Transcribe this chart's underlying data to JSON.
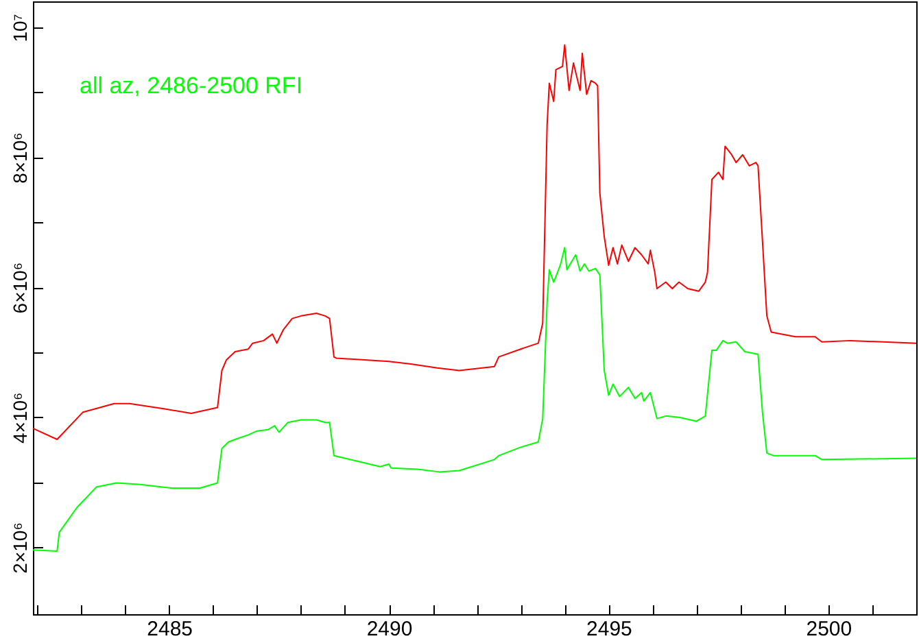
{
  "chart_data": {
    "type": "line",
    "annotations": [
      "all az, 2486-2500 RFI"
    ],
    "xlim": [
      2481.9,
      2502
    ],
    "xticks": [
      {
        "value": 2482,
        "label": null
      },
      {
        "value": 2483,
        "label": null
      },
      {
        "value": 2484,
        "label": null
      },
      2485,
      {
        "value": 2486,
        "label": null
      },
      {
        "value": 2487,
        "label": null
      },
      {
        "value": 2488,
        "label": null
      },
      {
        "value": 2489,
        "label": null
      },
      2490,
      {
        "value": 2491,
        "label": null
      },
      {
        "value": 2492,
        "label": null
      },
      {
        "value": 2493,
        "label": null
      },
      {
        "value": 2494,
        "label": null
      },
      2495,
      {
        "value": 2496,
        "label": null
      },
      {
        "value": 2497,
        "label": null
      },
      {
        "value": 2498,
        "label": null
      },
      {
        "value": 2499,
        "label": null
      },
      2500,
      {
        "value": 2501,
        "label": null
      }
    ],
    "ylim": [
      970000,
      10400000
    ],
    "yticks": [
      {
        "value": 2000000,
        "label": "2×10⁶"
      },
      {
        "value": 3000000,
        "label": null
      },
      {
        "value": 4000000,
        "label": "4×10⁶"
      },
      {
        "value": 5000000,
        "label": null
      },
      {
        "value": 6000000,
        "label": "6×10⁶"
      },
      {
        "value": 7000000,
        "label": null
      },
      {
        "value": 8000000,
        "label": "8×10⁶"
      },
      {
        "value": 9000000,
        "label": null
      },
      {
        "value": 10000000,
        "label": "10⁷"
      }
    ],
    "series": [
      {
        "color": "#ff0000",
        "x": [
          2481.9,
          2482.45,
          2483.04,
          2483.75,
          2484.1,
          2484.9,
          2485.5,
          2486.1,
          2486.2,
          2486.3,
          2486.5,
          2486.8,
          2486.9,
          2487.15,
          2487.35,
          2487.45,
          2487.6,
          2487.8,
          2488.0,
          2488.35,
          2488.55,
          2488.65,
          2488.75,
          2488.8,
          2490,
          2490.5,
          2491.1,
          2491.6,
          2492.4,
          2492.5,
          2493.0,
          2493.4,
          2493.5,
          2493.6,
          2493.65,
          2493.75,
          2493.8,
          2493.95,
          2494.0,
          2494.1,
          2494.2,
          2494.35,
          2494.4,
          2494.5,
          2494.6,
          2494.7,
          2494.75,
          2494.8,
          2494.9,
          2495.0,
          2495.1,
          2495.2,
          2495.3,
          2495.45,
          2495.6,
          2495.75,
          2495.9,
          2495.95,
          2496.05,
          2496.1,
          2496.3,
          2496.45,
          2496.6,
          2496.8,
          2497.05,
          2497.2,
          2497.25,
          2497.35,
          2497.5,
          2497.6,
          2497.65,
          2497.8,
          2497.9,
          2498.05,
          2498.2,
          2498.35,
          2498.4,
          2498.5,
          2498.6,
          2498.7,
          2499.25,
          2499.7,
          2499.85,
          2500.5,
          2502
        ],
        "values": [
          3830000,
          3660000,
          4080000,
          4210000,
          4210000,
          4130000,
          4060000,
          4150000,
          4720000,
          4880000,
          5010000,
          5050000,
          5140000,
          5180000,
          5280000,
          5140000,
          5350000,
          5520000,
          5560000,
          5600000,
          5560000,
          5520000,
          4930000,
          4910000,
          4860000,
          4820000,
          4760000,
          4720000,
          4780000,
          4930000,
          5050000,
          5140000,
          5450000,
          8500000,
          9140000,
          8860000,
          9350000,
          9400000,
          9730000,
          9030000,
          9450000,
          9030000,
          9600000,
          8970000,
          9180000,
          9140000,
          9100000,
          7450000,
          6780000,
          6340000,
          6610000,
          6360000,
          6650000,
          6400000,
          6610000,
          6500000,
          6360000,
          6570000,
          6230000,
          5980000,
          6080000,
          5980000,
          6080000,
          5980000,
          5940000,
          6080000,
          6230000,
          7660000,
          7770000,
          7660000,
          8170000,
          8040000,
          7920000,
          8040000,
          7870000,
          7920000,
          7870000,
          6720000,
          5560000,
          5310000,
          5240000,
          5240000,
          5160000,
          5180000,
          5140000
        ]
      },
      {
        "color": "#00ff00",
        "x": [
          2481.9,
          2482.45,
          2482.5,
          2482.9,
          2483.35,
          2483.8,
          2484.3,
          2485.05,
          2485.7,
          2486.1,
          2486.2,
          2486.35,
          2486.5,
          2486.8,
          2487.0,
          2487.25,
          2487.4,
          2487.5,
          2487.7,
          2488.0,
          2488.35,
          2488.55,
          2488.65,
          2488.75,
          2489.25,
          2489.8,
          2490.0,
          2490.05,
          2490.65,
          2491.15,
          2491.6,
          2492.4,
          2492.5,
          2493.0,
          2493.4,
          2493.5,
          2493.6,
          2493.65,
          2493.75,
          2493.9,
          2494.0,
          2494.05,
          2494.25,
          2494.35,
          2494.45,
          2494.55,
          2494.7,
          2494.8,
          2494.9,
          2495.0,
          2495.1,
          2495.25,
          2495.45,
          2495.6,
          2495.75,
          2495.8,
          2495.95,
          2496.1,
          2496.3,
          2496.6,
          2497.0,
          2497.2,
          2497.35,
          2497.45,
          2497.6,
          2497.7,
          2497.9,
          2498.1,
          2498.4,
          2498.5,
          2498.6,
          2498.75,
          2499.7,
          2499.85,
          2502
        ],
        "values": [
          1960000,
          1940000,
          2230000,
          2610000,
          2930000,
          2990000,
          2970000,
          2910000,
          2910000,
          2990000,
          3520000,
          3620000,
          3660000,
          3730000,
          3790000,
          3810000,
          3870000,
          3770000,
          3920000,
          3960000,
          3960000,
          3920000,
          3920000,
          3410000,
          3330000,
          3240000,
          3280000,
          3220000,
          3200000,
          3160000,
          3180000,
          3350000,
          3410000,
          3540000,
          3620000,
          3980000,
          5770000,
          6270000,
          6080000,
          6340000,
          6610000,
          6270000,
          6500000,
          6250000,
          6360000,
          6250000,
          6290000,
          6190000,
          4720000,
          4340000,
          4510000,
          4320000,
          4460000,
          4290000,
          4380000,
          4250000,
          4380000,
          3980000,
          4020000,
          4000000,
          3940000,
          4020000,
          5030000,
          5030000,
          5180000,
          5140000,
          5160000,
          5010000,
          4970000,
          4080000,
          3450000,
          3410000,
          3410000,
          3350000,
          3370000
        ]
      }
    ]
  }
}
